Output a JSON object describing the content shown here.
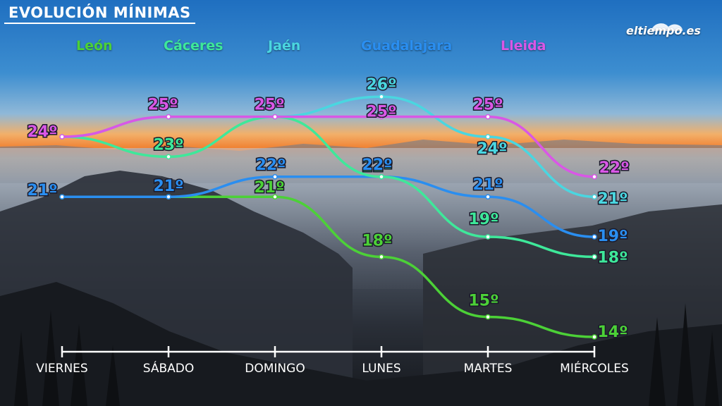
{
  "title": "EVOLUCIÓN MÍNIMAS",
  "brand": "eltiempo.es",
  "chart_data": {
    "type": "line",
    "title": "EVOLUCIÓN MÍNIMAS",
    "categories": [
      "VIERNES",
      "SÁBADO",
      "DOMINGO",
      "LUNES",
      "MARTES",
      "MIÉRCOLES"
    ],
    "unit": "º",
    "ylim": [
      13,
      27
    ],
    "series": [
      {
        "name": "León",
        "color": "#4cd137",
        "values": [
          21,
          21,
          21,
          18,
          15,
          14
        ],
        "labels": [
          "21º",
          "21º",
          "21º",
          "18º",
          "15º",
          "14º"
        ]
      },
      {
        "name": "Cáceres",
        "color": "#3ee89a",
        "values": [
          24,
          23,
          25,
          22,
          19,
          18
        ],
        "labels": [
          "24º",
          "23º",
          "25º",
          "22º",
          "19º",
          "18º"
        ]
      },
      {
        "name": "Jaén",
        "color": "#4ad6e0",
        "values": [
          24,
          25,
          25,
          26,
          24,
          21
        ],
        "labels": [
          "24º",
          "25º",
          "25º",
          "26º",
          "24º",
          "21º"
        ]
      },
      {
        "name": "Guadalajara",
        "color": "#2a8ef0",
        "values": [
          21,
          21,
          22,
          22,
          21,
          19
        ],
        "labels": [
          "21º",
          "21º",
          "22º",
          "22º",
          "21º",
          "19º"
        ]
      },
      {
        "name": "Lleida",
        "color": "#d957e6",
        "values": [
          24,
          25,
          25,
          25,
          25,
          22
        ],
        "labels": [
          "24º",
          "25º",
          "25º",
          "25º",
          "25º",
          "22º"
        ]
      }
    ]
  }
}
